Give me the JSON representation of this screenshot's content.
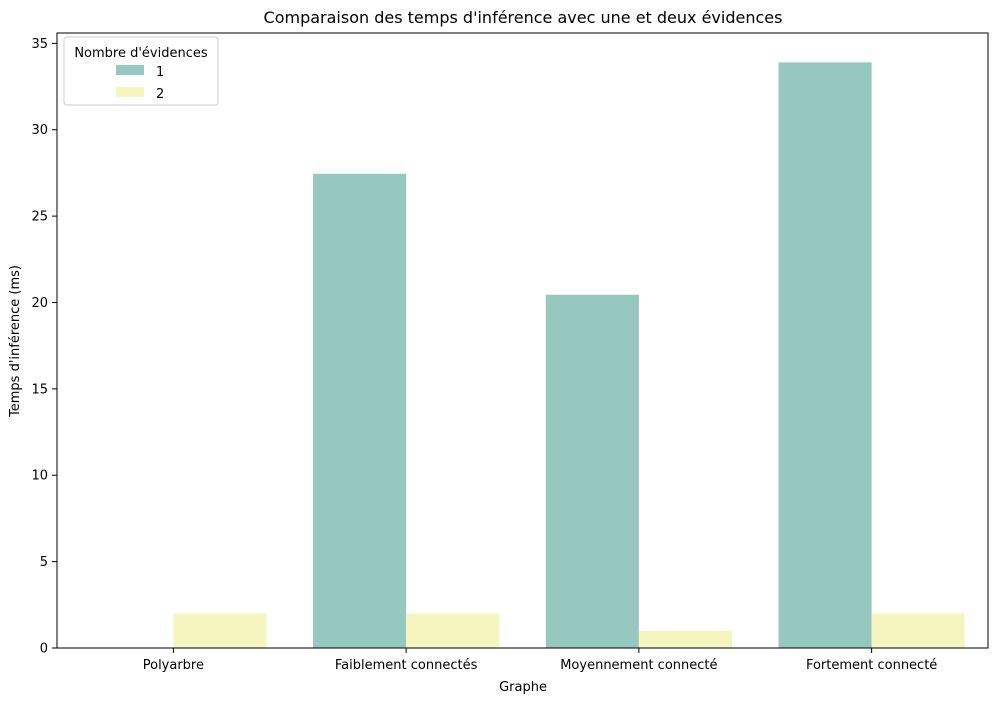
{
  "chart_data": {
    "type": "bar",
    "title": "Comparaison des temps d'inférence avec une et deux évidences",
    "xlabel": "Graphe",
    "ylabel": "Temps d'inférence (ms)",
    "categories": [
      "Polyarbre",
      "Faiblement connectés",
      "Moyennement connecté",
      "Fortement connecté"
    ],
    "ylim": [
      0,
      35.6
    ],
    "yticks": [
      0,
      5,
      10,
      15,
      20,
      25,
      30,
      35
    ],
    "grid": false,
    "legend": {
      "title": "Nombre d'évidences",
      "placement": "top-left"
    },
    "series": [
      {
        "name": "1",
        "color": "#97c8c0",
        "values": [
          0,
          27.45,
          20.45,
          33.9
        ]
      },
      {
        "name": "2",
        "color": "#f5f5bf",
        "values": [
          2,
          2,
          1,
          2
        ]
      }
    ]
  }
}
